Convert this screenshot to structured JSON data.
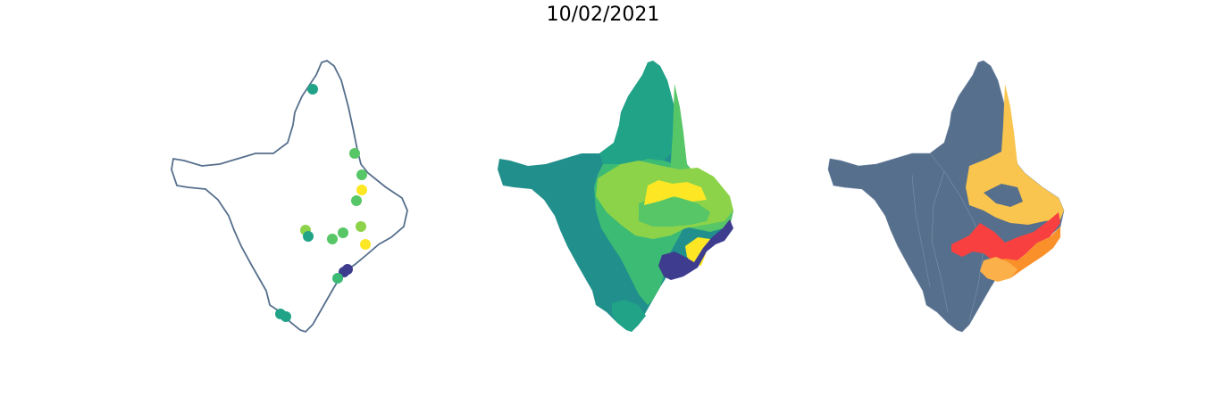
{
  "figure": {
    "title": "10/02/2021"
  },
  "panels": [
    {
      "kind": "point-map",
      "outline_color": "#566f8c"
    },
    {
      "kind": "choropleth",
      "palette": "viridis"
    },
    {
      "kind": "categorical-regions",
      "colors": [
        "#566f8c",
        "#f9c54e",
        "#f94040",
        "#f9902a"
      ]
    }
  ],
  "colors": {
    "dark_purple": "#3e3c8e",
    "teal_dark": "#21908c",
    "teal": "#20a387",
    "green": "#3cbb75",
    "light_green": "#56c667",
    "lime": "#8cd34a",
    "yellow": "#fde725",
    "slate": "#566f8c",
    "gold": "#f9c54e",
    "red": "#f94040",
    "orange": "#f9902a"
  }
}
